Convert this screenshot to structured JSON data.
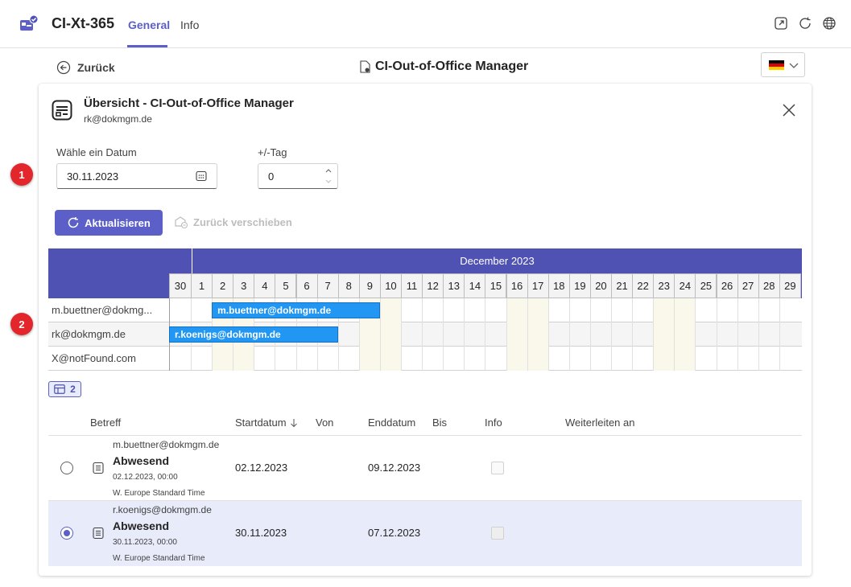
{
  "header": {
    "app_title": "CI-Xt-365",
    "tabs": [
      {
        "label": "General",
        "active": true
      },
      {
        "label": "Info",
        "active": false
      }
    ],
    "icons": [
      "popout-icon",
      "refresh-icon",
      "globe-icon"
    ],
    "accent_color": "#5b5fc7"
  },
  "subbar": {
    "back_label": "Zurück",
    "title": "CI-Out-of-Office Manager",
    "language_flag": "germany-flag-icon"
  },
  "card": {
    "title": "Übersicht - CI-Out-of-Office Manager",
    "subtitle": "rk@dokmgm.de",
    "date_label": "Wähle ein Datum",
    "date_value": "30.11.2023",
    "offset_label": "+/-Tag",
    "offset_value": "0",
    "refresh_button": "Aktualisieren",
    "move_back_button": "Zurück verschieben",
    "callouts": [
      "1",
      "2"
    ]
  },
  "timeline": {
    "month": "December 2023",
    "days": [
      "30",
      "1",
      "2",
      "3",
      "4",
      "5",
      "6",
      "7",
      "8",
      "9",
      "10",
      "11",
      "12",
      "13",
      "14",
      "15",
      "16",
      "17",
      "18",
      "19",
      "20",
      "21",
      "22",
      "23",
      "24",
      "25",
      "26",
      "27",
      "28",
      "29"
    ],
    "weekend_days": [
      "2",
      "3",
      "9",
      "10",
      "16",
      "17",
      "23",
      "24"
    ],
    "rows": [
      {
        "name": "m.buettner@dokmg...",
        "bar_label": "m.buettner@dokmgm.de",
        "start_day": "2",
        "end_day": "9"
      },
      {
        "name": "rk@dokmgm.de",
        "bar_label": "r.koenigs@dokmgm.de",
        "start_day": "30",
        "end_day": "7"
      },
      {
        "name": "X@notFound.com",
        "bar_label": "",
        "start_day": "",
        "end_day": ""
      }
    ]
  },
  "list": {
    "count": "2",
    "columns": [
      "Betreff",
      "Startdatum",
      "Von",
      "Enddatum",
      "Bis",
      "Info",
      "Weiterleiten an"
    ],
    "rows": [
      {
        "email": "m.buettner@dokmgm.de",
        "subject": "Abwesend",
        "created": "02.12.2023, 00:00",
        "timezone": "W. Europe Standard Time",
        "start": "02.12.2023",
        "end": "09.12.2023",
        "selected": false
      },
      {
        "email": "r.koenigs@dokmgm.de",
        "subject": "Abwesend",
        "created": "30.11.2023, 00:00",
        "timezone": "W. Europe Standard Time",
        "start": "30.11.2023",
        "end": "07.12.2023",
        "selected": true
      }
    ]
  }
}
